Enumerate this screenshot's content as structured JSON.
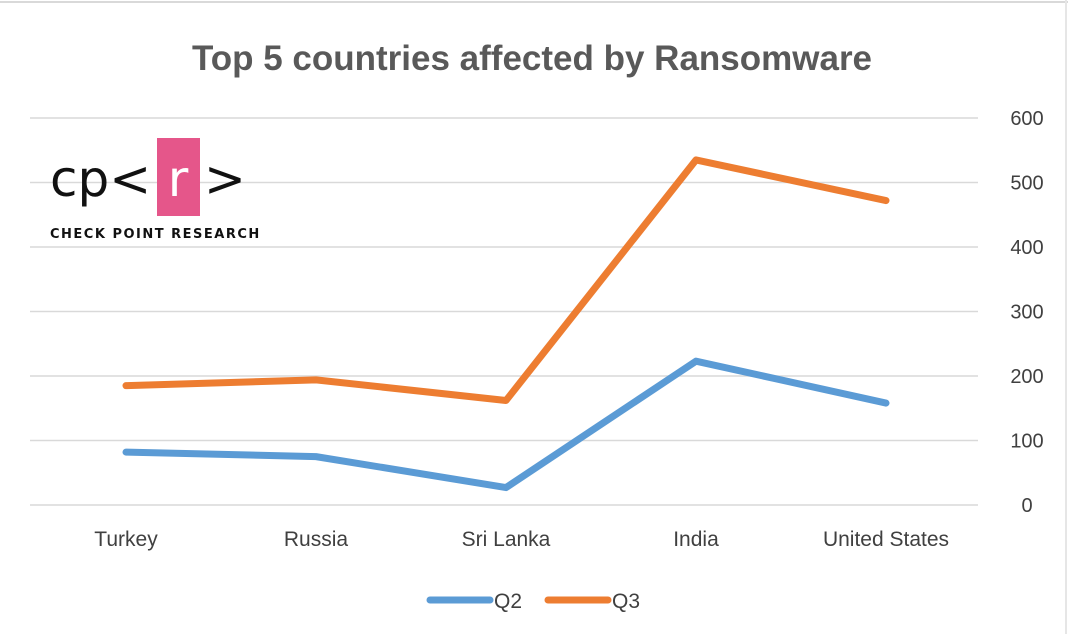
{
  "chart_data": {
    "type": "line",
    "title": "Top 5 countries affected by Ransomware",
    "categories": [
      "Turkey",
      "Russia",
      "Sri Lanka",
      "India",
      "United States"
    ],
    "series": [
      {
        "name": "Q2",
        "color": "#5B9BD5",
        "values": [
          82,
          75,
          27,
          223,
          158
        ]
      },
      {
        "name": "Q3",
        "color": "#ED7D31",
        "values": [
          185,
          194,
          162,
          535,
          472
        ]
      }
    ],
    "ylim": [
      0,
      600
    ],
    "yticks": [
      0,
      100,
      200,
      300,
      400,
      500,
      600
    ],
    "y_axis_side": "right",
    "grid": true,
    "legend_position": "bottom"
  },
  "logo": {
    "prefix": "cp<",
    "highlight": "r",
    "suffix": ">",
    "caption": "CHECK POINT RESEARCH",
    "highlight_color": "#E5568A"
  }
}
